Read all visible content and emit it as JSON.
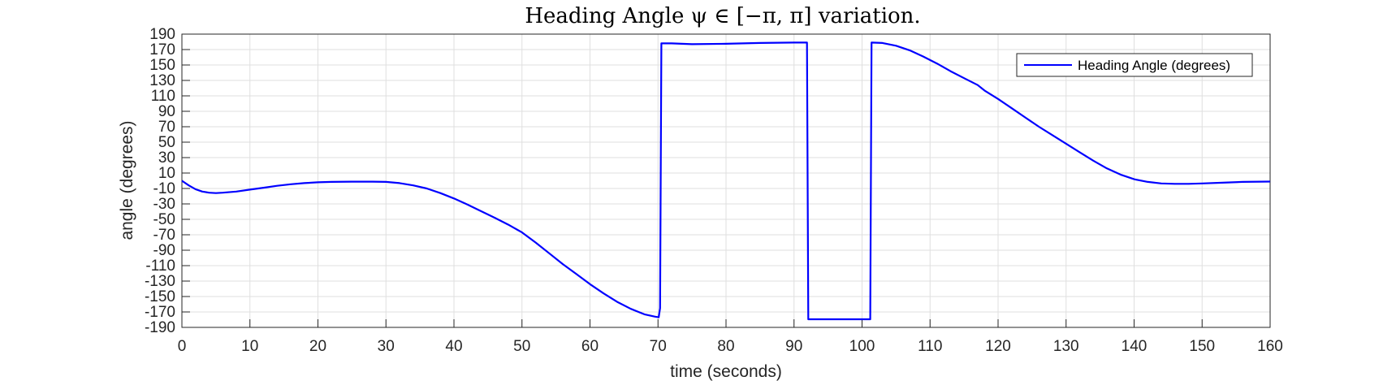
{
  "chart_data": {
    "type": "line",
    "title": "Heading Angle ψ ∈ [−π, π] variation.",
    "xlabel": "time (seconds)",
    "ylabel": "angle (degrees)",
    "xlim": [
      0,
      160
    ],
    "ylim": [
      -190,
      190
    ],
    "xticks": [
      0,
      10,
      20,
      30,
      40,
      50,
      60,
      70,
      80,
      90,
      100,
      110,
      120,
      130,
      140,
      150,
      160
    ],
    "yticks": [
      190,
      170,
      150,
      130,
      110,
      90,
      70,
      50,
      30,
      10,
      -10,
      -30,
      -50,
      -70,
      -90,
      -110,
      -130,
      -150,
      -170,
      -190
    ],
    "grid": true,
    "legend_position": "top-right",
    "series": [
      {
        "name": "Heading Angle (degrees)",
        "color": "#0000ff",
        "points": [
          [
            0,
            0
          ],
          [
            1,
            -6
          ],
          [
            2,
            -11
          ],
          [
            3,
            -14
          ],
          [
            4,
            -15.5
          ],
          [
            5,
            -16
          ],
          [
            6,
            -15.5
          ],
          [
            8,
            -14
          ],
          [
            10,
            -11.5
          ],
          [
            12,
            -9
          ],
          [
            14,
            -6.5
          ],
          [
            16,
            -4.5
          ],
          [
            18,
            -3
          ],
          [
            20,
            -2
          ],
          [
            22,
            -1.5
          ],
          [
            25,
            -1.2
          ],
          [
            28,
            -1.2
          ],
          [
            30,
            -1.5
          ],
          [
            32,
            -3
          ],
          [
            34,
            -6
          ],
          [
            36,
            -10
          ],
          [
            38,
            -16
          ],
          [
            40,
            -23
          ],
          [
            42,
            -31
          ],
          [
            44,
            -39.5
          ],
          [
            46,
            -48
          ],
          [
            48,
            -57
          ],
          [
            50,
            -67
          ],
          [
            52,
            -80
          ],
          [
            54,
            -94
          ],
          [
            56,
            -108
          ],
          [
            58,
            -121
          ],
          [
            60,
            -134
          ],
          [
            62,
            -146
          ],
          [
            64,
            -157
          ],
          [
            66,
            -166
          ],
          [
            68,
            -173
          ],
          [
            69.5,
            -176
          ],
          [
            70.1,
            -177
          ],
          [
            70.3,
            -165
          ],
          [
            70.5,
            178
          ],
          [
            72,
            178
          ],
          [
            75,
            177
          ],
          [
            80,
            177.5
          ],
          [
            85,
            178.5
          ],
          [
            90,
            179
          ],
          [
            91.5,
            179
          ],
          [
            91.9,
            179
          ],
          [
            92.1,
            -179.5
          ],
          [
            95,
            -179.5
          ],
          [
            98,
            -179.5
          ],
          [
            101,
            -179.5
          ],
          [
            101.2,
            -179.5
          ],
          [
            101.4,
            179
          ],
          [
            103,
            178.5
          ],
          [
            105,
            175
          ],
          [
            107,
            169
          ],
          [
            109,
            161
          ],
          [
            111,
            152
          ],
          [
            113,
            142
          ],
          [
            115,
            133
          ],
          [
            117,
            124
          ],
          [
            118,
            117
          ],
          [
            120,
            106
          ],
          [
            122,
            94
          ],
          [
            124,
            82
          ],
          [
            126,
            70
          ],
          [
            128,
            59
          ],
          [
            130,
            48
          ],
          [
            132,
            37
          ],
          [
            134,
            26
          ],
          [
            136,
            16
          ],
          [
            138,
            8
          ],
          [
            140,
            2
          ],
          [
            142,
            -1.5
          ],
          [
            144,
            -3.5
          ],
          [
            146,
            -4
          ],
          [
            148,
            -4
          ],
          [
            150,
            -3.5
          ],
          [
            153,
            -2.5
          ],
          [
            156,
            -1.5
          ],
          [
            160,
            -1
          ]
        ]
      }
    ]
  }
}
